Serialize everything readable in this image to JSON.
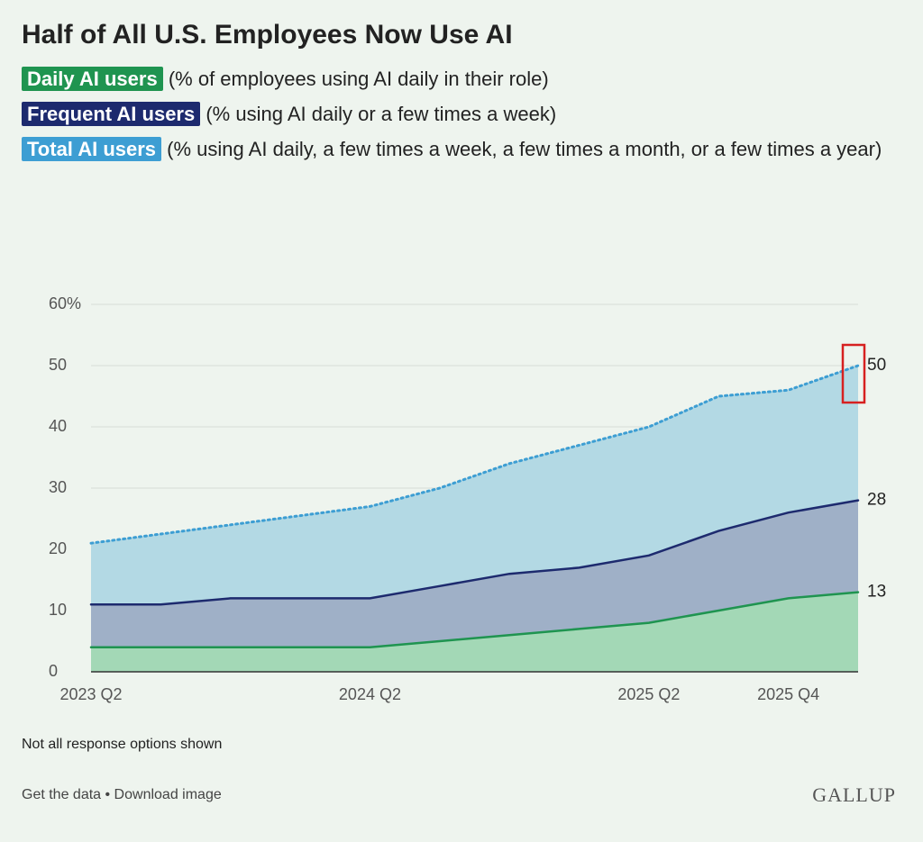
{
  "chart_data": {
    "type": "area",
    "title": "Half of All U.S. Employees Now Use AI",
    "categories": [
      "2023 Q2",
      null,
      null,
      null,
      "2024 Q2",
      null,
      null,
      null,
      "2025 Q2",
      null,
      "2025 Q4",
      null
    ],
    "series": [
      {
        "name": "Total AI users",
        "description": "(% using AI daily, a few times a week, a few times a month, or a few times a year)",
        "color": "#3d9ed3",
        "fill_color": "#b3d9e4",
        "line_style": "dotted",
        "values": [
          21,
          22.5,
          24,
          25.5,
          27,
          30,
          34,
          37,
          40,
          45,
          46,
          50
        ]
      },
      {
        "name": "Frequent AI users",
        "description": "(% using AI daily or a few times a week)",
        "color": "#1d2a6e",
        "fill_color": "#9fb0c7",
        "line_style": "solid",
        "values": [
          11,
          11,
          12,
          12,
          12,
          14,
          16,
          17,
          19,
          23,
          26,
          28
        ]
      },
      {
        "name": "Daily AI users",
        "description": "(% of employees using AI daily in their role)",
        "color": "#1f9450",
        "fill_color": "#a3d8b6",
        "line_style": "solid",
        "values": [
          4,
          4,
          4,
          4,
          4,
          5,
          6,
          7,
          8,
          10,
          12,
          13
        ]
      }
    ],
    "legend_order": [
      2,
      1,
      0
    ],
    "ylim": [
      0,
      60
    ],
    "yticks": [
      0,
      10,
      20,
      30,
      40,
      50,
      {
        "value": 60,
        "label": "60%"
      }
    ],
    "grid": true,
    "note": "Not all response options shown",
    "footer": "Get the data • Download image",
    "brand": "GALLUP"
  }
}
